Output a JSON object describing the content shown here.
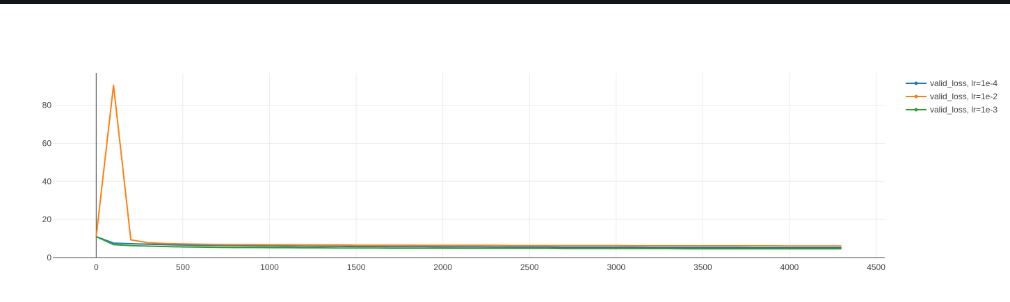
{
  "chart_data": {
    "type": "line",
    "title": "",
    "xlabel": "",
    "ylabel": "",
    "xlim": [
      -250,
      4550
    ],
    "ylim": [
      0,
      97
    ],
    "x_ticks": [
      0,
      500,
      1000,
      1500,
      2000,
      2500,
      3000,
      3500,
      4000,
      4500
    ],
    "y_ticks": [
      0,
      20,
      40,
      60,
      80
    ],
    "grid": true,
    "legend_position": "top-right",
    "x": [
      0,
      100,
      200,
      300,
      400,
      500,
      600,
      700,
      800,
      900,
      1000,
      1100,
      1200,
      1300,
      1400,
      1500,
      1600,
      1700,
      1800,
      1900,
      2000,
      2100,
      2200,
      2300,
      2400,
      2500,
      2600,
      2700,
      2800,
      2900,
      3000,
      3100,
      3200,
      3300,
      3400,
      3500,
      3600,
      3700,
      3800,
      3900,
      4000,
      4100,
      4200,
      4300
    ],
    "series": [
      {
        "name": "valid_loss, lr=1e-4",
        "color": "#1f77b4",
        "values": [
          11.0,
          7.6,
          7.3,
          7.0,
          6.8,
          6.6,
          6.5,
          6.4,
          6.3,
          6.2,
          6.1,
          6.0,
          6.0,
          5.9,
          5.9,
          5.8,
          5.8,
          5.7,
          5.7,
          5.7,
          5.6,
          5.6,
          5.6,
          5.5,
          5.5,
          5.5,
          5.5,
          5.4,
          5.4,
          5.4,
          5.4,
          5.4,
          5.3,
          5.3,
          5.3,
          5.3,
          5.3,
          5.3,
          5.2,
          5.2,
          5.2,
          5.2,
          5.2,
          5.2
        ]
      },
      {
        "name": "valid_loss, lr=1e-2",
        "color": "#ff7f0e",
        "values": [
          11.0,
          90.5,
          9.3,
          7.8,
          7.4,
          7.2,
          7.0,
          6.9,
          6.8,
          6.8,
          6.7,
          6.7,
          6.6,
          6.6,
          6.6,
          6.5,
          6.5,
          6.5,
          6.5,
          6.4,
          6.4,
          6.4,
          6.4,
          6.4,
          6.3,
          6.3,
          6.3,
          6.3,
          6.3,
          6.3,
          6.3,
          6.2,
          6.2,
          6.2,
          6.2,
          6.2,
          6.2,
          6.2,
          6.2,
          6.2,
          6.1,
          6.1,
          6.1,
          6.1
        ]
      },
      {
        "name": "valid_loss, lr=1e-3",
        "color": "#2ca02c",
        "values": [
          11.0,
          6.8,
          6.3,
          6.0,
          5.8,
          5.6,
          5.5,
          5.4,
          5.3,
          5.3,
          5.2,
          5.2,
          5.1,
          5.1,
          5.0,
          5.0,
          5.0,
          4.9,
          4.9,
          4.9,
          4.9,
          4.8,
          4.8,
          4.8,
          4.8,
          4.8,
          4.8,
          4.7,
          4.7,
          4.7,
          4.7,
          4.7,
          4.7,
          4.7,
          4.6,
          4.6,
          4.6,
          4.6,
          4.6,
          4.6,
          4.6,
          4.6,
          4.6,
          4.6
        ]
      }
    ]
  },
  "colors": {
    "grid": "#ebebeb",
    "axis": "#444444",
    "top_bar": "#111417"
  }
}
